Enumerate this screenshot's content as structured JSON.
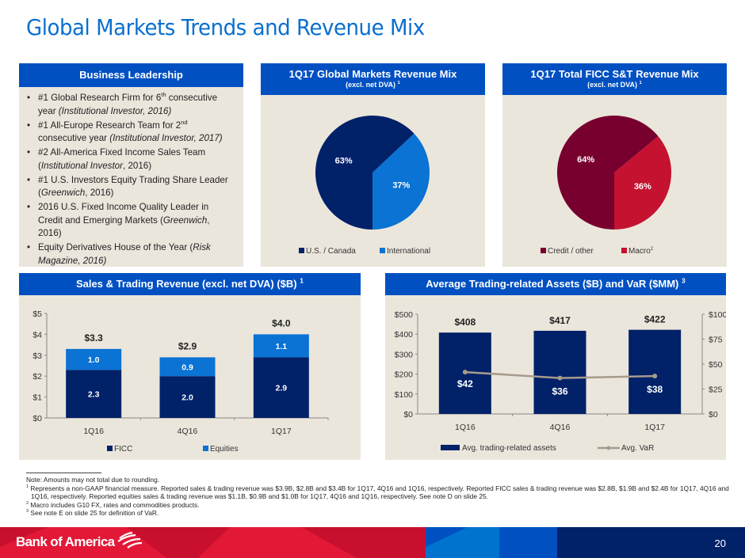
{
  "page_title": "Global Markets Trends and Revenue Mix",
  "business_leadership": {
    "header": "Business Leadership",
    "items": [
      {
        "pre": "#1 Global Research Firm for 6",
        "sup": "th",
        "post": " consecutive year ",
        "ital": "(Institutional Investor, 2016)",
        "tail": ""
      },
      {
        "pre": "#1 All-Europe Research Team for 2",
        "sup": "nd",
        "post": " consecutive year ",
        "ital": "(Institutional Investor, 2017)",
        "tail": ""
      },
      {
        "pre": "#2 All-America Fixed Income Sales Team (",
        "sup": "",
        "post": "",
        "ital": "Institutional Investor",
        "tail": ", 2016)"
      },
      {
        "pre": "#1 U.S. Investors Equity Trading Share Leader (",
        "sup": "",
        "post": "",
        "ital": "Greenwich",
        "tail": ", 2016)"
      },
      {
        "pre": "2016 U.S. Fixed Income Quality Leader in Credit and Emerging Markets (",
        "sup": "",
        "post": "",
        "ital": "Greenwich",
        "tail": ", 2016)"
      },
      {
        "pre": "Equity Derivatives House of the Year (",
        "sup": "",
        "post": "",
        "ital": "Risk Magazine, 2016)",
        "tail": ""
      }
    ]
  },
  "colors": {
    "header_blue": "#0050c2",
    "navy": "#012169",
    "light_blue": "#0a73d4",
    "maroon": "#78002e",
    "red": "#c41230",
    "var_line": "#a59b8c",
    "panel_bg": "#ebe6dc",
    "title_blue": "#0a6fcf"
  },
  "chart_data": [
    {
      "type": "pie",
      "title": "1Q17 Global Markets Revenue Mix",
      "subtitle": "(excl. net DVA)",
      "subtitle_sup": "1",
      "slices": [
        {
          "label": "U.S. / Canada",
          "value": 63,
          "display": "63%",
          "color": "#012169"
        },
        {
          "label": "International",
          "value": 37,
          "display": "37%",
          "color": "#0a73d4"
        }
      ],
      "legend": [
        "U.S. / Canada",
        "International"
      ],
      "legend_position": "bottom"
    },
    {
      "type": "pie",
      "title": "1Q17 Total FICC S&T Revenue Mix",
      "subtitle": "(excl. net DVA)",
      "subtitle_sup": "1",
      "slices": [
        {
          "label": "Credit / other",
          "value": 64,
          "display": "64%",
          "color": "#78002e"
        },
        {
          "label": "Macro",
          "value": 36,
          "display": "36%",
          "color": "#c41230"
        }
      ],
      "legend": [
        "Credit / other",
        "Macro"
      ],
      "legend_sups": [
        "",
        "2"
      ],
      "legend_position": "bottom"
    },
    {
      "type": "bar",
      "stacked": true,
      "title": "Sales & Trading Revenue (excl. net DVA) ($B)",
      "title_sup": "1",
      "categories": [
        "1Q16",
        "4Q16",
        "1Q17"
      ],
      "series": [
        {
          "name": "FICC",
          "values": [
            2.3,
            2.0,
            2.9
          ],
          "labels": [
            "2.3",
            "2.0",
            "2.9"
          ],
          "color": "#012169"
        },
        {
          "name": "Equities",
          "values": [
            1.0,
            0.9,
            1.1
          ],
          "labels": [
            "1.0",
            "0.9",
            "1.1"
          ],
          "color": "#0a73d4"
        }
      ],
      "totals": [
        3.3,
        2.9,
        4.0
      ],
      "total_labels": [
        "$3.3",
        "$2.9",
        "$4.0"
      ],
      "ylim": [
        0,
        5
      ],
      "yticks": [
        "$0",
        "$1",
        "$2",
        "$3",
        "$4",
        "$5"
      ],
      "xlabel": "",
      "ylabel": "",
      "legend_position": "bottom"
    },
    {
      "type": "bar",
      "title": "Average Trading-related Assets ($B) and VaR ($MM)",
      "title_sup": "3",
      "categories": [
        "1Q16",
        "4Q16",
        "1Q17"
      ],
      "series": [
        {
          "name": "Avg. trading-related assets",
          "type": "bar",
          "axis": "left",
          "values": [
            408,
            417,
            422
          ],
          "labels": [
            "$408",
            "$417",
            "$422"
          ],
          "color": "#012169"
        },
        {
          "name": "Avg. VaR",
          "type": "line",
          "axis": "right",
          "values": [
            42,
            36,
            38
          ],
          "labels": [
            "$42",
            "$36",
            "$38"
          ],
          "color": "#a59b8c"
        }
      ],
      "ylim": [
        0,
        500
      ],
      "yticks": [
        "$0",
        "$100",
        "$200",
        "$300",
        "$400",
        "$500"
      ],
      "y2lim": [
        0,
        100
      ],
      "y2ticks": [
        "$0",
        "$25",
        "$50",
        "$75",
        "$100"
      ],
      "legend_position": "bottom"
    }
  ],
  "footnotes": {
    "note": "Note: Amounts may not total due to rounding.",
    "items": [
      {
        "num": "1",
        "text": "Represents a non-GAAP financial measure. Reported sales & trading revenue was $3.9B, $2.8B and $3.4B for 1Q17, 4Q16 and 1Q16, respectively. Reported FICC sales & trading revenue was $2.8B, $1.9B and $2.4B for 1Q17, 4Q16 and 1Q16, respectively. Reported equities sales & trading revenue was $1.1B, $0.9B and $1.0B for 1Q17, 4Q16 and 1Q16, respectively. See note D on slide 25."
      },
      {
        "num": "2",
        "text": "Macro includes G10 FX, rates and commodities products."
      },
      {
        "num": "3",
        "text": "See note E on slide 25 for definition of VaR."
      }
    ]
  },
  "footer": {
    "logo": "Bank of America",
    "page_number": "20"
  }
}
